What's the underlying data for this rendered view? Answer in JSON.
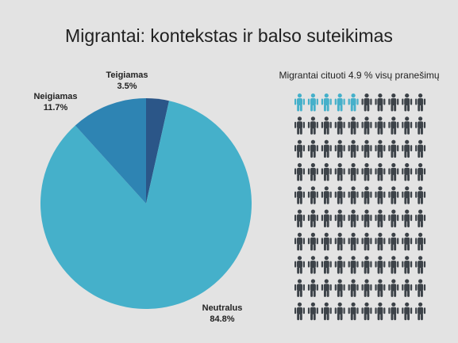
{
  "title": "Migrantai: kontekstas ir balso suteikimas",
  "chart_data": [
    {
      "type": "pie",
      "title": "",
      "slices": [
        {
          "name": "Teigiamas",
          "value": 3.5,
          "label": "3.5%",
          "color": "#2b5688"
        },
        {
          "name": "Neutralus",
          "value": 84.8,
          "label": "84.8%",
          "color": "#45b0ca"
        },
        {
          "name": "Neigiamas",
          "value": 11.7,
          "label": "11.7%",
          "color": "#2e84b3"
        }
      ]
    },
    {
      "type": "pictogram",
      "title": "Migrantai cituoti 4.9 % visų pranešimų",
      "total_icons": 100,
      "highlighted_icons": 5,
      "colors": {
        "highlight": "#45b0ca",
        "base": "#3c4248"
      }
    }
  ]
}
